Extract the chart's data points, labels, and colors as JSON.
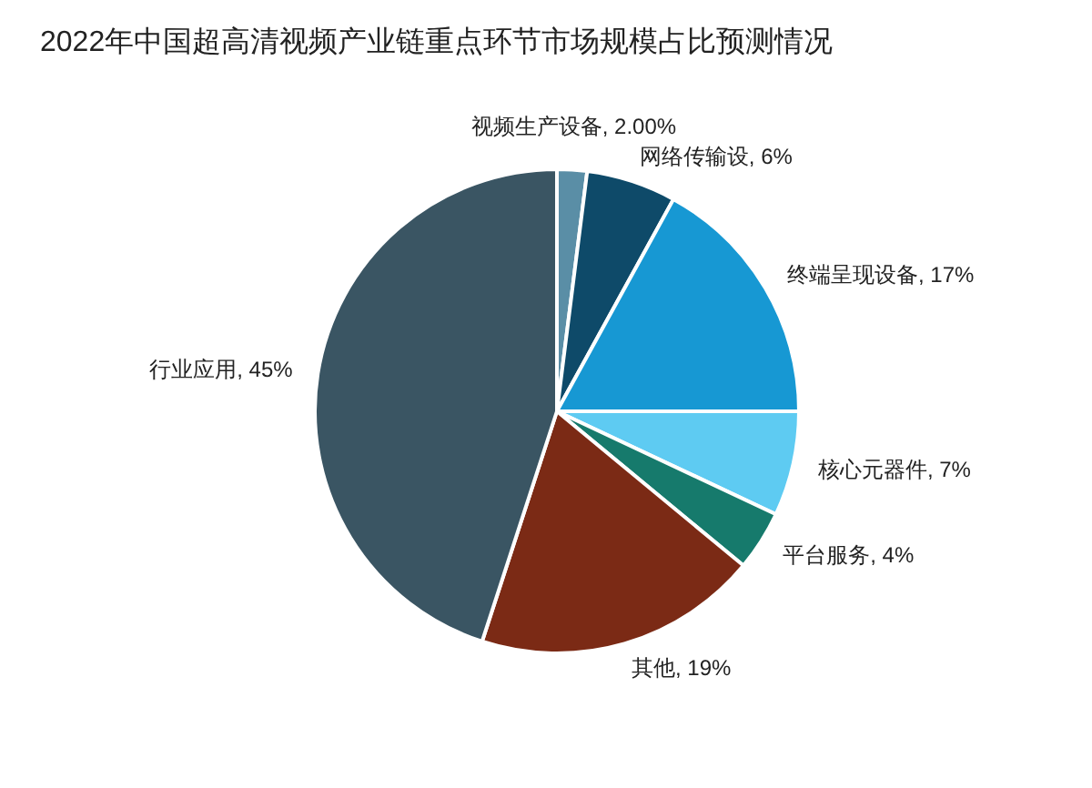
{
  "chart_data": {
    "type": "pie",
    "title": "2022年中国超高清视频产业链重点环节市场规模占比预测情况",
    "categories": [
      "视频生产设备",
      "网络传输设",
      "终端呈现设备",
      "核心元器件",
      "平台服务",
      "其他",
      "行业应用"
    ],
    "values": [
      2,
      6,
      17,
      7,
      4,
      19,
      45
    ],
    "value_labels": [
      "2.00%",
      "6%",
      "17%",
      "7%",
      "4%",
      "19%",
      "45%"
    ],
    "colors": [
      "#5a8ea6",
      "#0e4a69",
      "#1798d3",
      "#5ecbf2",
      "#167a6c",
      "#7b2a15",
      "#3a5563"
    ]
  }
}
